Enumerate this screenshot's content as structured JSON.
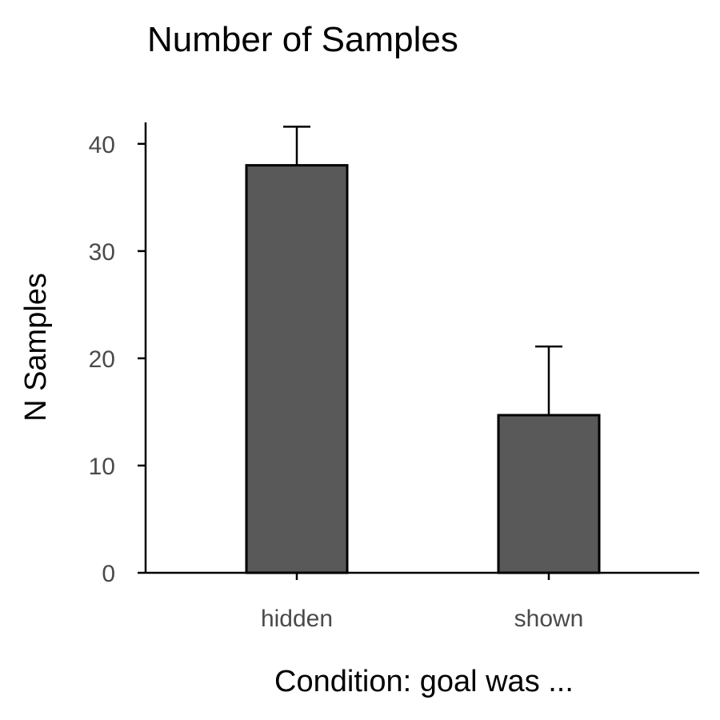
{
  "chart_data": {
    "type": "bar",
    "title": "Number of Samples",
    "xlabel": "Condition: goal was ...",
    "ylabel": "N Samples",
    "categories": [
      "hidden",
      "shown"
    ],
    "values": [
      38,
      14.7
    ],
    "error_upper": [
      41.6,
      21.1
    ],
    "ylim": [
      0,
      42
    ],
    "yticks": [
      0,
      10,
      20,
      30,
      40
    ],
    "grid": false,
    "legend": "none",
    "bar_color": "#595959",
    "edge_color": "#000000"
  }
}
